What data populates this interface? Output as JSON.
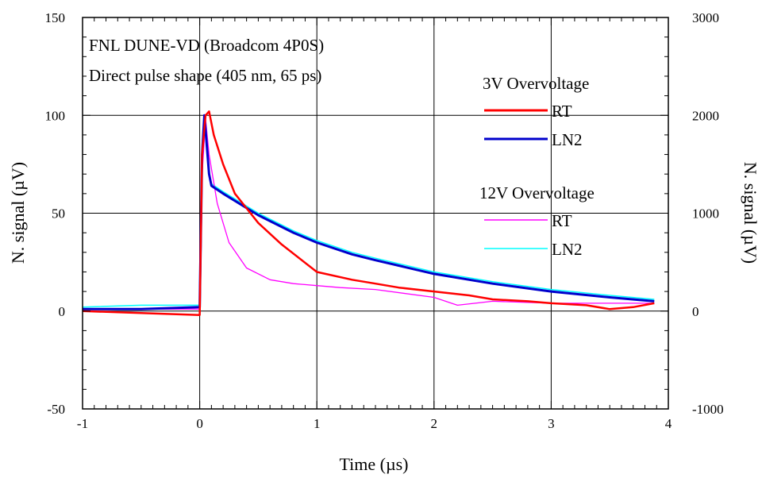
{
  "chart_data": {
    "type": "line",
    "xlabel": "Time (µs)",
    "ylabel_left": "N. signal (µV)",
    "ylabel_right": "N. signal (µV)",
    "xlim": [
      -1,
      4
    ],
    "ylim_left": [
      -50,
      150
    ],
    "ylim_right": [
      -1000,
      3000
    ],
    "x_ticks": [
      "-1",
      "0",
      "1",
      "2",
      "3",
      "4"
    ],
    "y_ticks_left": [
      "150",
      "100",
      "50",
      "0",
      "-50"
    ],
    "y_ticks_right": [
      "3000",
      "2000",
      "1000",
      "0",
      "-1000"
    ],
    "grid": true,
    "annotations": [
      "FNL DUNE-VD (Broadcom 4P0S)",
      "Direct pulse shape (405 nm, 65 ps)"
    ],
    "legend_groups": [
      "3V Overvoltage",
      "12V Overvoltage"
    ],
    "series": [
      {
        "name": "RT",
        "group": "3V Overvoltage",
        "color": "#ff0000",
        "x": [
          -1.0,
          -0.5,
          0.0,
          0.02,
          0.05,
          0.08,
          0.12,
          0.2,
          0.3,
          0.5,
          0.7,
          1.0,
          1.3,
          1.5,
          1.7,
          2.0,
          2.3,
          2.5,
          2.8,
          3.0,
          3.3,
          3.5,
          3.7,
          3.88
        ],
        "y": [
          0,
          -1,
          -2,
          80,
          100,
          102,
          90,
          75,
          60,
          45,
          34,
          20,
          16,
          14,
          12,
          10,
          8,
          6,
          5,
          4,
          3,
          1,
          2,
          4
        ]
      },
      {
        "name": "LN2",
        "group": "3V Overvoltage",
        "color": "#0000cc",
        "x": [
          -1.0,
          -0.5,
          0.0,
          0.02,
          0.04,
          0.08,
          0.1,
          0.2,
          0.5,
          0.8,
          1.0,
          1.3,
          1.5,
          2.0,
          2.5,
          3.0,
          3.5,
          3.88
        ],
        "y": [
          1,
          1,
          2,
          80,
          100,
          70,
          64,
          60,
          49,
          40,
          35,
          29,
          26,
          19,
          14,
          10,
          7,
          5
        ]
      },
      {
        "name": "RT",
        "group": "12V Overvoltage",
        "color": "#ff00ff",
        "x": [
          -1.0,
          -0.5,
          0.0,
          0.02,
          0.05,
          0.08,
          0.15,
          0.25,
          0.4,
          0.6,
          0.8,
          1.0,
          1.2,
          1.5,
          2.0,
          2.2,
          2.5,
          3.0,
          3.5,
          3.88
        ],
        "y": [
          1,
          1,
          1,
          70,
          98,
          80,
          55,
          35,
          22,
          16,
          14,
          13,
          12,
          11,
          7,
          3,
          5,
          4,
          4,
          4
        ]
      },
      {
        "name": "LN2",
        "group": "12V Overvoltage",
        "color": "#00ffff",
        "x": [
          -1.0,
          -0.5,
          0.0,
          0.02,
          0.04,
          0.08,
          0.1,
          0.2,
          0.5,
          0.8,
          1.0,
          1.3,
          1.5,
          2.0,
          2.5,
          3.0,
          3.5,
          3.88
        ],
        "y": [
          2,
          3,
          3,
          85,
          98,
          70,
          65,
          61,
          50,
          41,
          36,
          30,
          27,
          20,
          15,
          11,
          8,
          6
        ]
      }
    ]
  }
}
